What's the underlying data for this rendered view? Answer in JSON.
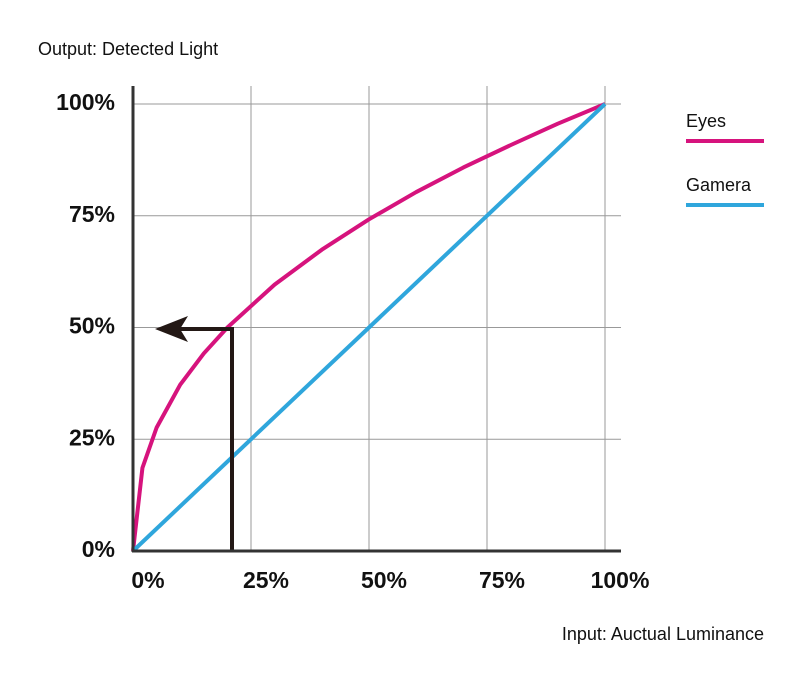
{
  "chart_data": {
    "type": "line",
    "y_label": "Output: Detected Light",
    "x_label": "Input: Auctual Luminance",
    "xlim": [
      0,
      100
    ],
    "ylim": [
      0,
      100
    ],
    "xticks": [
      {
        "value": 0,
        "label": "0%"
      },
      {
        "value": 25,
        "label": "25%"
      },
      {
        "value": 50,
        "label": "50%"
      },
      {
        "value": 75,
        "label": "75%"
      },
      {
        "value": 100,
        "label": "100%"
      }
    ],
    "yticks": [
      {
        "value": 0,
        "label": "0%"
      },
      {
        "value": 25,
        "label": "25%"
      },
      {
        "value": 50,
        "label": "50%"
      },
      {
        "value": 75,
        "label": "75%"
      },
      {
        "value": 100,
        "label": "100%"
      }
    ],
    "grid": true,
    "legend": "right",
    "series": [
      {
        "name": "Eyes",
        "color": "#d6137d",
        "x": [
          0,
          2,
          5,
          10,
          15,
          20,
          30,
          40,
          50,
          60,
          70,
          80,
          90,
          100
        ],
        "values": [
          0,
          18.6,
          27.6,
          37.2,
          44.2,
          50,
          59.6,
          67.4,
          74.2,
          80.3,
          85.8,
          90.8,
          95.6,
          100
        ]
      },
      {
        "name": "Gamera",
        "color": "#2fa6dc",
        "x": [
          0,
          100
        ],
        "values": [
          0,
          100
        ]
      }
    ]
  }
}
